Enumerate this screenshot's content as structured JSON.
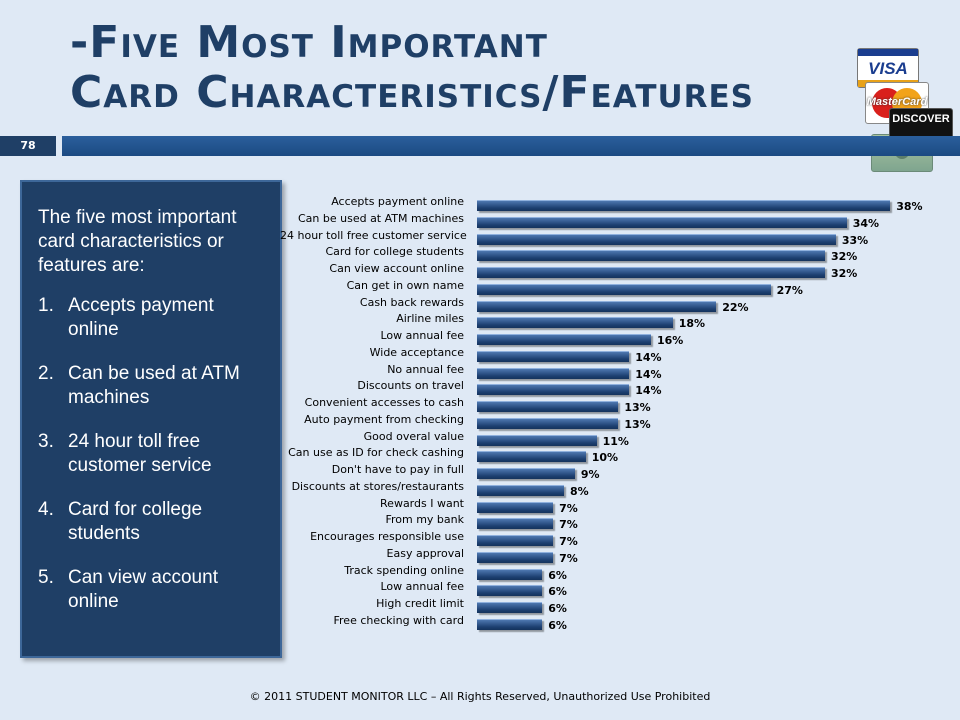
{
  "slide": {
    "title_line1": "-Five Most Important",
    "title_line2": "Card Characteristics/Features",
    "slide_number": "78",
    "footer": "© 2011 STUDENT MONITOR LLC – All Rights Reserved, Unauthorized Use Prohibited"
  },
  "card_logos": {
    "visa": "VISA",
    "mastercard": "MasterCard",
    "discover": "DISCOVER"
  },
  "summary": {
    "intro": "The five most important card characteristics or features are:",
    "items": [
      {
        "num": "1.",
        "text": "Accepts payment online"
      },
      {
        "num": "2.",
        "text": "Can be used at ATM machines"
      },
      {
        "num": "3.",
        "text": "24 hour toll free customer service"
      },
      {
        "num": "4.",
        "text": "Card for college students"
      },
      {
        "num": "5.",
        "text": "Can view account online"
      }
    ]
  },
  "colors": {
    "title": "#1f3f66",
    "bar": "#1c3f70",
    "panel": "#1f3f66",
    "background": "#dfe9f5"
  },
  "chart_data": {
    "type": "bar",
    "orientation": "horizontal",
    "title": "",
    "xlabel": "",
    "ylabel": "",
    "xlim": [
      0,
      40
    ],
    "grid": false,
    "categories": [
      "Accepts payment online",
      "Can be used at ATM machines",
      "24 hour toll free customer service",
      "Card for college students",
      "Can view account online",
      "Can get in own name",
      "Cash back rewards",
      "Airline miles",
      "Low annual fee",
      "Wide acceptance",
      "No annual fee",
      "Discounts on travel",
      "Convenient accesses to cash",
      "Auto payment from checking",
      "Good overal value",
      "Can use as ID for check cashing",
      "Don't have to pay in full",
      "Discounts at stores/restaurants",
      "Rewards I want",
      "From my bank",
      "Encourages responsible use",
      "Easy approval",
      "Track spending online",
      "Low annual fee",
      "High credit limit",
      "Free checking with card"
    ],
    "values": [
      38,
      34,
      33,
      32,
      32,
      27,
      22,
      18,
      16,
      14,
      14,
      14,
      13,
      13,
      11,
      10,
      9,
      8,
      7,
      7,
      7,
      7,
      6,
      6,
      6,
      6
    ],
    "value_labels": [
      "38%",
      "34%",
      "33%",
      "32%",
      "32%",
      "27%",
      "22%",
      "18%",
      "16%",
      "14%",
      "14%",
      "14%",
      "13%",
      "13%",
      "11%",
      "10%",
      "9%",
      "8%",
      "7%",
      "7%",
      "7%",
      "7%",
      "6%",
      "6%",
      "6%",
      "6%"
    ]
  }
}
